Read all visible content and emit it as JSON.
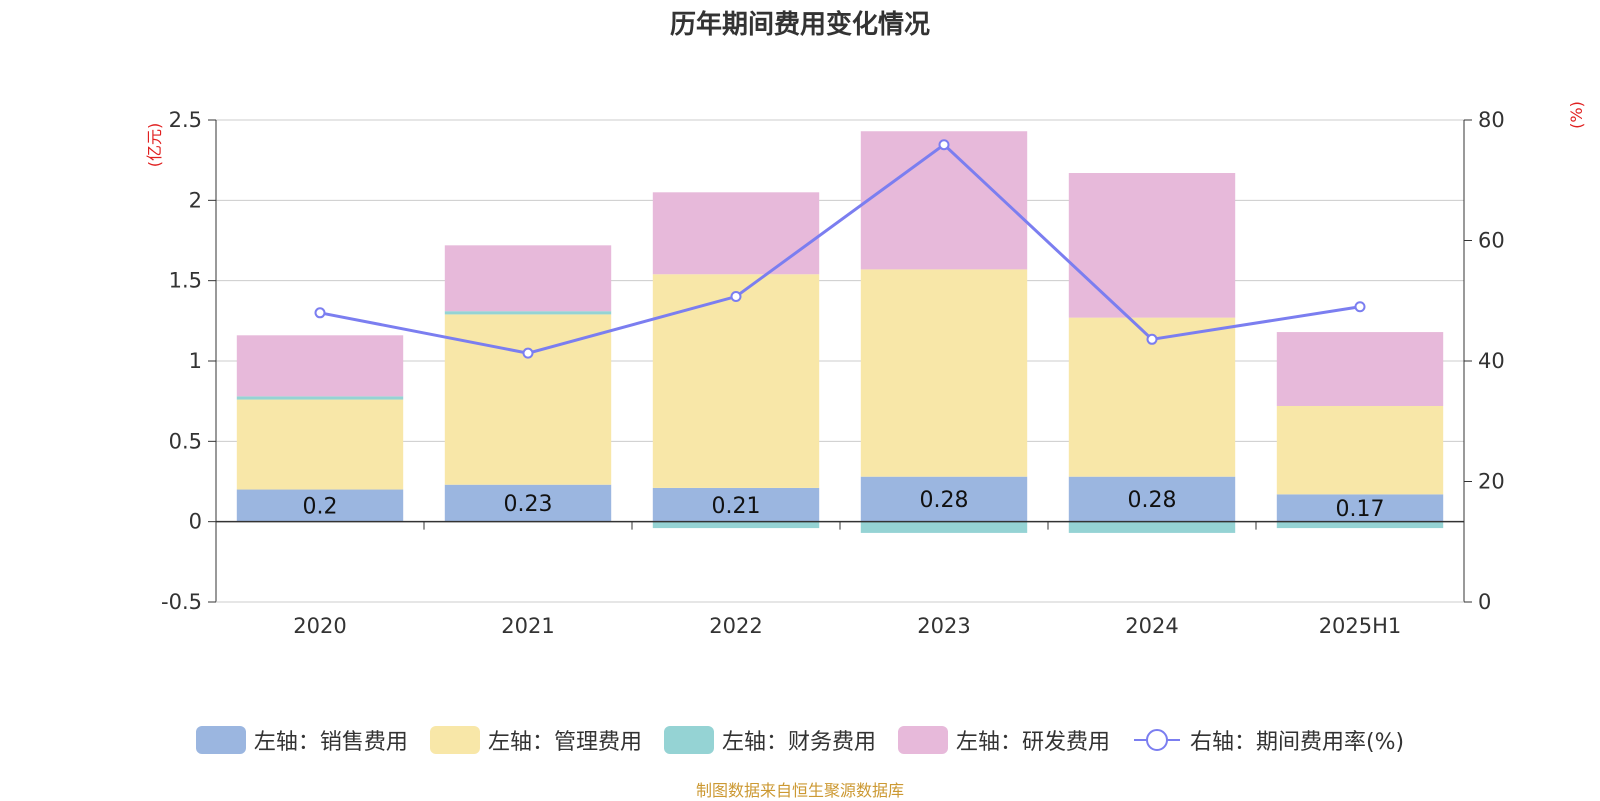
{
  "chart_data": {
    "type": "bar",
    "title": "历年期间费用变化情况",
    "left_unit": "(亿元)",
    "right_unit": "(%)",
    "categories": [
      "2020",
      "2021",
      "2022",
      "2023",
      "2024",
      "2025H1"
    ],
    "ylim_left": [
      -0.5,
      2.5
    ],
    "yticks_left": [
      "-0.5",
      "0",
      "0.5",
      "1",
      "1.5",
      "2",
      "2.5"
    ],
    "ylim_right": [
      0,
      80
    ],
    "yticks_right": [
      "0",
      "20",
      "40",
      "60",
      "80"
    ],
    "grid": true,
    "legend_position": "bottom",
    "series": [
      {
        "name": "左轴：销售费用",
        "axis": "left",
        "kind": "bar",
        "color": "#9bb6e0",
        "values": [
          0.2,
          0.23,
          0.21,
          0.28,
          0.28,
          0.17
        ],
        "labels": [
          "0.2",
          "0.23",
          "0.21",
          "0.28",
          "0.28",
          "0.17"
        ]
      },
      {
        "name": "左轴：管理费用",
        "axis": "left",
        "kind": "bar",
        "color": "#f8e7a8",
        "values": [
          0.56,
          1.06,
          1.33,
          1.29,
          0.99,
          0.55
        ]
      },
      {
        "name": "左轴：财务费用",
        "axis": "left",
        "kind": "bar",
        "color": "#95d3d4",
        "values": [
          0.02,
          0.02,
          -0.04,
          -0.07,
          -0.07,
          -0.04
        ]
      },
      {
        "name": "左轴：研发费用",
        "axis": "left",
        "kind": "bar",
        "color": "#e7b9da",
        "values": [
          0.38,
          0.41,
          0.51,
          0.86,
          0.9,
          0.46
        ]
      },
      {
        "name": "右轴：期间费用率(%)",
        "axis": "right",
        "kind": "line",
        "color": "#7b7ef0",
        "values": [
          48.0,
          41.3,
          50.7,
          75.9,
          43.6,
          49.0
        ]
      }
    ],
    "source": "制图数据来自恒生聚源数据库"
  }
}
